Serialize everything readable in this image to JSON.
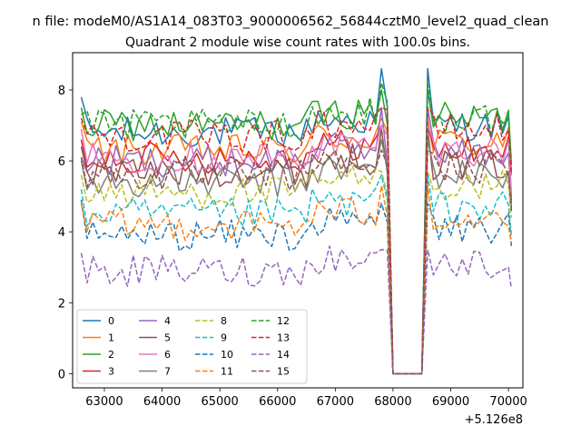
{
  "suptitle": "n file: modeM0/AS1A14_083T03_9000006562_56844cztM0_level2_quad_clean",
  "chart_data": {
    "type": "line",
    "title": "Quadrant 2 module wise count rates with 100.0s bins.",
    "xlabel": "",
    "ylabel": "",
    "x_offset_label": "+5.126e8",
    "xlim": [
      62450,
      70250
    ],
    "ylim": [
      -0.4,
      9.05
    ],
    "xticks": [
      63000,
      64000,
      65000,
      66000,
      67000,
      68000,
      69000,
      70000
    ],
    "xtick_labels": [
      "63000",
      "64000",
      "65000",
      "66000",
      "67000",
      "68000",
      "69000",
      "70000"
    ],
    "yticks": [
      0,
      2,
      4,
      6,
      8
    ],
    "ytick_labels": [
      "0",
      "2",
      "4",
      "6",
      "8"
    ],
    "x_start": 62600,
    "x_step": 100,
    "gap": {
      "from": 68000,
      "to": 68500,
      "value": 0
    },
    "legend": {
      "placement": "lower-left",
      "columns": 4
    },
    "series": [
      {
        "name": "0",
        "base": 6.8,
        "peak": 8.6,
        "start": 7.8,
        "end": 5.7,
        "style": "solid"
      },
      {
        "name": "1",
        "base": 6.3,
        "peak": 7.2,
        "start": 7.1,
        "end": 5.6,
        "style": "solid"
      },
      {
        "name": "2",
        "base": 7.0,
        "peak": 8.0,
        "start": 7.5,
        "end": 5.9,
        "style": "solid"
      },
      {
        "name": "3",
        "base": 6.1,
        "peak": 7.0,
        "start": 6.6,
        "end": 4.9,
        "style": "solid"
      },
      {
        "name": "4",
        "base": 6.0,
        "peak": 7.5,
        "start": 6.1,
        "end": 4.8,
        "style": "solid"
      },
      {
        "name": "5",
        "base": 5.7,
        "peak": 6.9,
        "start": 6.4,
        "end": 4.7,
        "style": "solid"
      },
      {
        "name": "6",
        "base": 6.1,
        "peak": 7.0,
        "start": 6.9,
        "end": 5.1,
        "style": "solid"
      },
      {
        "name": "7",
        "base": 5.4,
        "peak": 6.6,
        "start": 6.0,
        "end": 4.6,
        "style": "solid"
      },
      {
        "name": "8",
        "base": 5.1,
        "peak": 5.7,
        "start": 5.6,
        "end": 4.4,
        "style": "dashed"
      },
      {
        "name": "9",
        "base": 4.5,
        "peak": 5.6,
        "start": 5.2,
        "end": 3.9,
        "style": "dashed"
      },
      {
        "name": "10",
        "base": 3.9,
        "peak": 4.8,
        "start": 4.9,
        "end": 3.6,
        "style": "dashed"
      },
      {
        "name": "11",
        "base": 4.2,
        "peak": 5.3,
        "start": 4.8,
        "end": 3.7,
        "style": "dashed"
      },
      {
        "name": "12",
        "base": 7.0,
        "peak": 8.2,
        "start": 7.3,
        "end": 6.0,
        "style": "dashed"
      },
      {
        "name": "13",
        "base": 6.7,
        "peak": 7.5,
        "start": 7.2,
        "end": 5.6,
        "style": "dashed"
      },
      {
        "name": "14",
        "base": 2.9,
        "peak": 3.5,
        "start": 3.4,
        "end": 2.4,
        "style": "dashed"
      },
      {
        "name": "15",
        "base": 5.6,
        "peak": 6.3,
        "start": 6.1,
        "end": 4.6,
        "style": "dashed"
      }
    ],
    "colors": [
      "#1f77b4",
      "#ff7f0e",
      "#2ca02c",
      "#d62728",
      "#9467bd",
      "#8c564b",
      "#e377c2",
      "#7f7f7f",
      "#bcbd22",
      "#17becf"
    ]
  }
}
